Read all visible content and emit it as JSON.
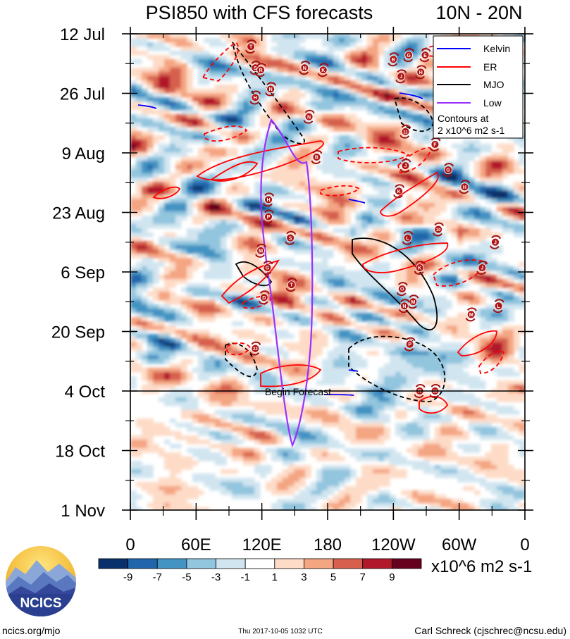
{
  "chart_data": {
    "type": "heatmap",
    "title": "PSI850 with CFS forecasts",
    "region": "10N - 20N",
    "time_axis": {
      "labels": [
        "12 Jul",
        "26 Jul",
        "9 Aug",
        "23 Aug",
        "6 Sep",
        "20 Sep",
        "4 Oct",
        "18 Oct",
        "1 Nov"
      ],
      "start_day": 0,
      "end_day": 112,
      "label_step_days": 14
    },
    "lon_axis": {
      "labels": [
        "0",
        "60E",
        "120E",
        "180",
        "120W",
        "60W",
        "0"
      ],
      "range": [
        0,
        360
      ],
      "label_step_deg": 60
    },
    "colorbar": {
      "levels": [
        "-9",
        "-7",
        "-5",
        "-3",
        "-1",
        "1",
        "3",
        "5",
        "7",
        "9"
      ],
      "colors": [
        "#08306b",
        "#2166ac",
        "#4393c3",
        "#92c5de",
        "#d1e5f0",
        "#ffffff",
        "#fddbc7",
        "#f4a582",
        "#d6604d",
        "#b2182b",
        "#67001f"
      ],
      "units": "x10^6 m2 s-1"
    },
    "legend": {
      "entries": [
        {
          "name": "Kelvin",
          "color": "#0000ff"
        },
        {
          "name": "ER",
          "color": "#ff0000"
        },
        {
          "name": "MJO",
          "color": "#000000"
        },
        {
          "name": "Low",
          "color": "#9b30ff"
        }
      ],
      "note_line1": "Contours at",
      "note_line2": "2 x10^6 m2 s-1",
      "placement": "top-right"
    },
    "forecast_start": {
      "label": "Begin Forecast",
      "day": 84
    },
    "storms": [
      {
        "id": "T",
        "lon": 110,
        "day": 3
      },
      {
        "id": "S",
        "lon": 114,
        "day": 8
      },
      {
        "id": "R",
        "lon": 119,
        "day": 8.5
      },
      {
        "id": "H",
        "lon": 114,
        "day": 15
      },
      {
        "id": "N",
        "lon": 128,
        "day": 13
      },
      {
        "id": "N",
        "lon": 159,
        "day": 8
      },
      {
        "id": "K",
        "lon": 176,
        "day": 8.5
      },
      {
        "id": "N",
        "lon": 163,
        "day": 19.5
      },
      {
        "id": "B",
        "lon": 170,
        "day": 29
      },
      {
        "id": "H",
        "lon": 126,
        "day": 39
      },
      {
        "id": "P",
        "lon": 126,
        "day": 43
      },
      {
        "id": "S",
        "lon": 146,
        "day": 48
      },
      {
        "id": "M",
        "lon": 119,
        "day": 51
      },
      {
        "id": "G",
        "lon": 125,
        "day": 55
      },
      {
        "id": "T",
        "lon": 147,
        "day": 59
      },
      {
        "id": "D",
        "lon": 122,
        "day": 62
      },
      {
        "id": "22",
        "lon": 114,
        "day": 74
      },
      {
        "id": "B",
        "lon": 240,
        "day": 6
      },
      {
        "id": "G",
        "lon": 254,
        "day": 5
      },
      {
        "id": "E",
        "lon": 269,
        "day": 5
      },
      {
        "id": "J",
        "lon": 247,
        "day": 10
      },
      {
        "id": "H",
        "lon": 265,
        "day": 9
      },
      {
        "id": "11",
        "lon": 251,
        "day": 23
      },
      {
        "id": "F",
        "lon": 278,
        "day": 26
      },
      {
        "id": "J",
        "lon": 251,
        "day": 31
      },
      {
        "id": "G",
        "lon": 290,
        "day": 32
      },
      {
        "id": "K",
        "lon": 245,
        "day": 37
      },
      {
        "id": "H",
        "lon": 305,
        "day": 36
      },
      {
        "id": "10",
        "lon": 281,
        "day": 46
      },
      {
        "id": "L",
        "lon": 253,
        "day": 48
      },
      {
        "id": "J",
        "lon": 333,
        "day": 49
      },
      {
        "id": "K",
        "lon": 264,
        "day": 55
      },
      {
        "id": "J",
        "lon": 321,
        "day": 55
      },
      {
        "id": "O",
        "lon": 248,
        "day": 60
      },
      {
        "id": "M",
        "lon": 258,
        "day": 63
      },
      {
        "id": "N",
        "lon": 250,
        "day": 64
      },
      {
        "id": "M",
        "lon": 311,
        "day": 66
      },
      {
        "id": "L",
        "lon": 336,
        "day": 64
      },
      {
        "id": "P",
        "lon": 255,
        "day": 73
      },
      {
        "id": "R",
        "lon": 264,
        "day": 84
      },
      {
        "id": "16",
        "lon": 278,
        "day": 84
      }
    ]
  },
  "footer": {
    "logo_text": "NCICS",
    "url": "ncics.org/mjo",
    "timestamp": "Thu 2017-10-05 1032 UTC",
    "author": "Carl Schreck (cjschrec@ncsu.edu)"
  }
}
